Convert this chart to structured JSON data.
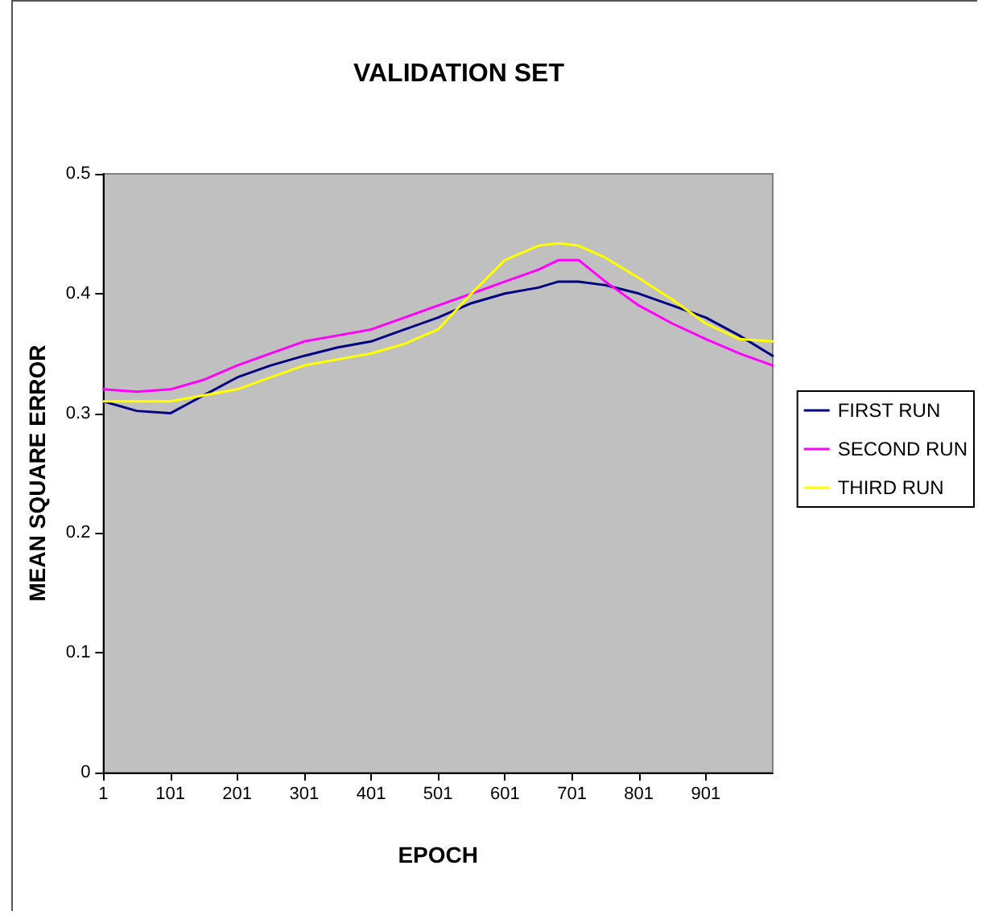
{
  "chart_data": {
    "type": "line",
    "title": "VALIDATION SET",
    "xlabel": "EPOCH",
    "ylabel": "MEAN SQUARE ERROR",
    "x": [
      1,
      51,
      101,
      151,
      201,
      251,
      301,
      351,
      401,
      451,
      501,
      551,
      601,
      651,
      681,
      711,
      751,
      801,
      851,
      901,
      951,
      1001
    ],
    "series": [
      {
        "name": "FIRST RUN",
        "color": "#000080",
        "values": [
          0.31,
          0.302,
          0.3,
          0.315,
          0.33,
          0.34,
          0.348,
          0.355,
          0.36,
          0.37,
          0.38,
          0.392,
          0.4,
          0.405,
          0.41,
          0.41,
          0.407,
          0.4,
          0.39,
          0.38,
          0.365,
          0.348
        ]
      },
      {
        "name": "SECOND RUN",
        "color": "#ff00ff",
        "values": [
          0.32,
          0.318,
          0.32,
          0.328,
          0.34,
          0.35,
          0.36,
          0.365,
          0.37,
          0.38,
          0.39,
          0.4,
          0.41,
          0.42,
          0.428,
          0.428,
          0.41,
          0.39,
          0.375,
          0.362,
          0.35,
          0.34
        ]
      },
      {
        "name": "THIRD RUN",
        "color": "#ffff00",
        "values": [
          0.31,
          0.31,
          0.31,
          0.315,
          0.32,
          0.33,
          0.34,
          0.345,
          0.35,
          0.358,
          0.37,
          0.4,
          0.428,
          0.44,
          0.442,
          0.44,
          0.43,
          0.413,
          0.395,
          0.375,
          0.362,
          0.36
        ]
      }
    ],
    "xlim": [
      1,
      1001
    ],
    "xticks": [
      1,
      101,
      201,
      301,
      401,
      501,
      601,
      701,
      801,
      901
    ],
    "ylim": [
      0,
      0.5
    ],
    "yticks": [
      0,
      0.1,
      0.2,
      0.3,
      0.4,
      0.5
    ],
    "grid": false,
    "legend": "right",
    "marker": "none",
    "line_style": "solid"
  }
}
